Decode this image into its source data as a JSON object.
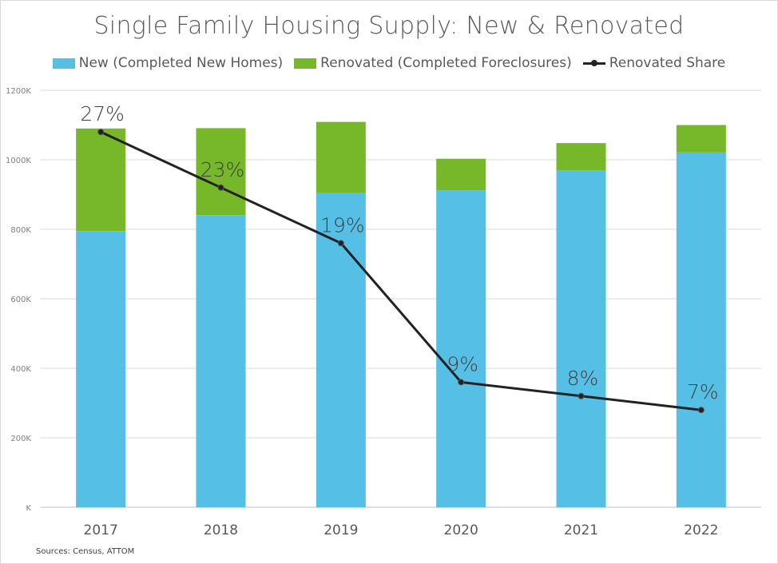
{
  "chart_data": {
    "type": "bar",
    "title": "Single Family Housing Supply: New & Renovated",
    "categories": [
      "2017",
      "2018",
      "2019",
      "2020",
      "2021",
      "2022"
    ],
    "series": [
      {
        "name": "New (Completed New Homes)",
        "values": [
          795,
          841,
          904,
          912,
          970,
          1021
        ]
      },
      {
        "name": "Renovated (Completed Foreclosures)",
        "values": [
          295,
          250,
          205,
          91,
          78,
          79
        ]
      }
    ],
    "line_series": {
      "name": "Renovated Share",
      "values": [
        27,
        23,
        19,
        9,
        8,
        7
      ],
      "labels": [
        "27%",
        "23%",
        "19%",
        "9%",
        "8%",
        "7%"
      ]
    },
    "stacked": true,
    "y_ticks": [
      "K",
      "200K",
      "400K",
      "600K",
      "800K",
      "1000K",
      "1200K"
    ],
    "ylim": [
      0,
      1200
    ],
    "secondary_ylim": [
      0,
      30
    ],
    "grid": true,
    "legend_position": "top",
    "colors": {
      "new": "#56bfe6",
      "renovated": "#76b82a",
      "share": "#222222"
    }
  },
  "source": "Sources: Census, ATTOM"
}
